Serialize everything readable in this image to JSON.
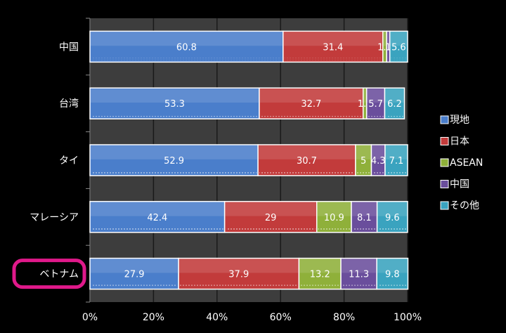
{
  "chart_data": {
    "type": "bar",
    "orientation": "horizontal",
    "stacked": true,
    "categories": [
      "中国",
      "台湾",
      "タイ",
      "マレーシア",
      "ベトナム"
    ],
    "highlighted_category": "ベトナム",
    "series": [
      {
        "name": "現地",
        "color": "#4a7ecb",
        "values": [
          60.8,
          53.3,
          52.9,
          42.4,
          27.9
        ],
        "labels": [
          "60.8",
          "53.3",
          "52.9",
          "42.4",
          "27.9"
        ]
      },
      {
        "name": "日本",
        "color": "#c23b3b",
        "values": [
          31.4,
          32.7,
          30.7,
          29,
          37.9
        ],
        "labels": [
          "31.4",
          "32.7",
          "30.7",
          "29",
          "37.9"
        ]
      },
      {
        "name": "ASEAN",
        "color": "#8fb03a",
        "values": [
          1.2,
          1.1,
          5,
          10.9,
          13.2
        ],
        "labels": [
          "1.2",
          "1.1",
          "5",
          "10.9",
          "13.2"
        ]
      },
      {
        "name": "中国",
        "color": "#6a4e9c",
        "values": [
          1.0,
          5.7,
          4.3,
          8.1,
          11.3
        ],
        "labels": [
          "1",
          "5.7",
          "4.3",
          "8.1",
          "11.3"
        ]
      },
      {
        "name": "その他",
        "color": "#3aa3bf",
        "values": [
          5.6,
          6.2,
          7.1,
          9.6,
          9.8
        ],
        "labels": [
          "5.6",
          "6.2",
          "7.1",
          "9.6",
          "9.8"
        ]
      }
    ],
    "xticks": [
      "0%",
      "20%",
      "40%",
      "60%",
      "80%",
      "100%"
    ],
    "xlim": [
      0,
      100
    ],
    "grid": true,
    "legend_position": "right",
    "background": "#000000",
    "plot_background": "#3d3d3d",
    "highlight_color": "#e0198a"
  }
}
